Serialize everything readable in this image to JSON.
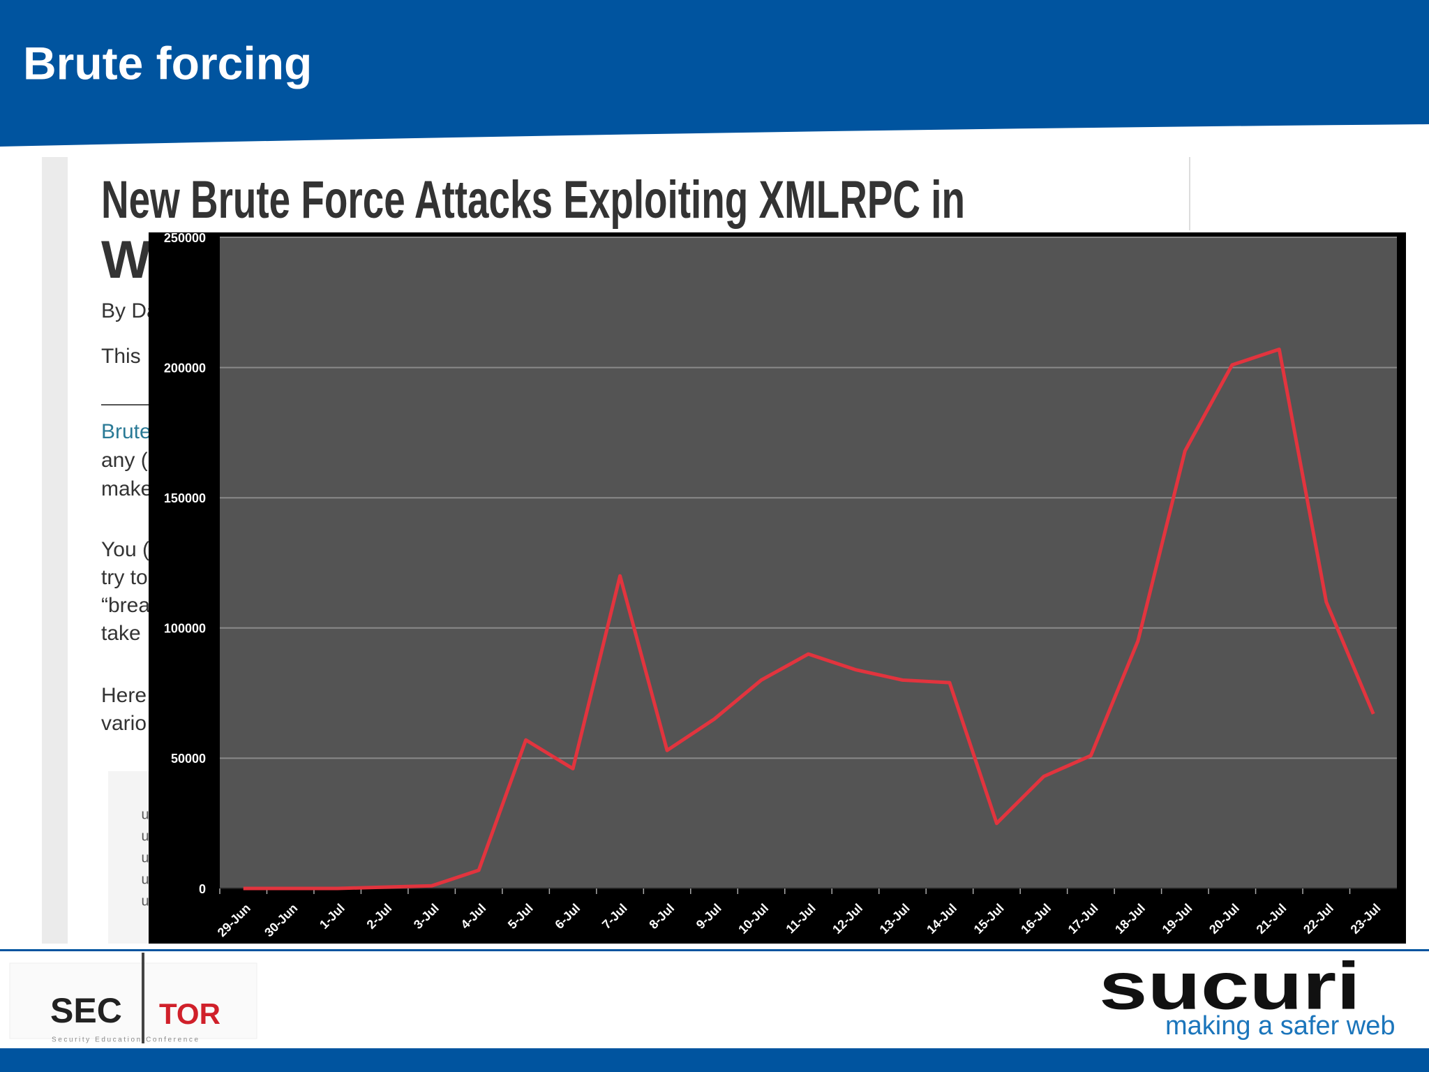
{
  "slide": {
    "title": "Brute forcing",
    "article": {
      "headline": "New Brute Force Attacks Exploiting XMLRPC in",
      "headline_2": "Wo",
      "lines": [
        "By Da",
        "This",
        "Brute",
        "any (",
        "make",
        "You (",
        "try to",
        "“brea",
        "take",
        "Here",
        "vario"
      ],
      "code_lines": [
        "u",
        "u",
        "u",
        "u",
        "u"
      ]
    },
    "logo_left": {
      "text_1": "SEC",
      "text_2": "TOR",
      "tagline": "Security Education Conference"
    },
    "logo_right": {
      "name": "sucuri",
      "tagline": "making a safer web"
    }
  },
  "chart_data": {
    "type": "line",
    "categories": [
      "29-Jun",
      "30-Jun",
      "1-Jul",
      "2-Jul",
      "3-Jul",
      "4-Jul",
      "5-Jul",
      "6-Jul",
      "7-Jul",
      "8-Jul",
      "9-Jul",
      "10-Jul",
      "11-Jul",
      "12-Jul",
      "13-Jul",
      "14-Jul",
      "15-Jul",
      "16-Jul",
      "17-Jul",
      "18-Jul",
      "19-Jul",
      "20-Jul",
      "21-Jul",
      "22-Jul",
      "23-Jul"
    ],
    "values": [
      0,
      0,
      0,
      500,
      1000,
      7000,
      57000,
      46000,
      120000,
      53000,
      65000,
      80000,
      90000,
      84000,
      80000,
      79000,
      25000,
      43000,
      51000,
      95000,
      168000,
      201000,
      207000,
      110000,
      67000
    ],
    "color": "#e2343e",
    "ylim": [
      0,
      250000
    ],
    "yticks": [
      0,
      50000,
      100000,
      150000,
      200000,
      250000
    ],
    "grid": true
  }
}
